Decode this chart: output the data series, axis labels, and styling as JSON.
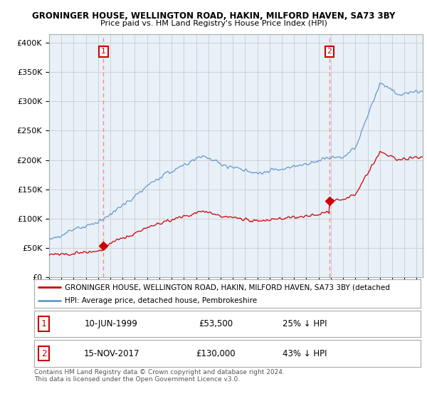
{
  "title": "GRONINGER HOUSE, WELLINGTON ROAD, HAKIN, MILFORD HAVEN, SA73 3BY",
  "subtitle": "Price paid vs. HM Land Registry's House Price Index (HPI)",
  "ylabel_ticks": [
    "£0",
    "£50K",
    "£100K",
    "£150K",
    "£200K",
    "£250K",
    "£300K",
    "£350K",
    "£400K"
  ],
  "ytick_values": [
    0,
    50000,
    100000,
    150000,
    200000,
    250000,
    300000,
    350000,
    400000
  ],
  "ylim": [
    0,
    415000
  ],
  "xlim_start": 1995.0,
  "xlim_end": 2025.5,
  "purchase1_date": 1999.44,
  "purchase1_price": 53500,
  "purchase1_label": "1",
  "purchase2_date": 2017.88,
  "purchase2_price": 130000,
  "purchase2_label": "2",
  "hpi_color": "#6699CC",
  "price_color": "#CC0000",
  "dashed_color": "#FF8888",
  "background_color": "#FFFFFF",
  "chart_bg_color": "#E8F0F8",
  "grid_color": "#CCCCCC",
  "legend_line1": "GRONINGER HOUSE, WELLINGTON ROAD, HAKIN, MILFORD HAVEN, SA73 3BY (detached",
  "legend_line2": "HPI: Average price, detached house, Pembrokeshire",
  "table_row1": [
    "1",
    "10-JUN-1999",
    "£53,500",
    "25% ↓ HPI"
  ],
  "table_row2": [
    "2",
    "15-NOV-2017",
    "£130,000",
    "43% ↓ HPI"
  ],
  "footer": "Contains HM Land Registry data © Crown copyright and database right 2024.\nThis data is licensed under the Open Government Licence v3.0."
}
